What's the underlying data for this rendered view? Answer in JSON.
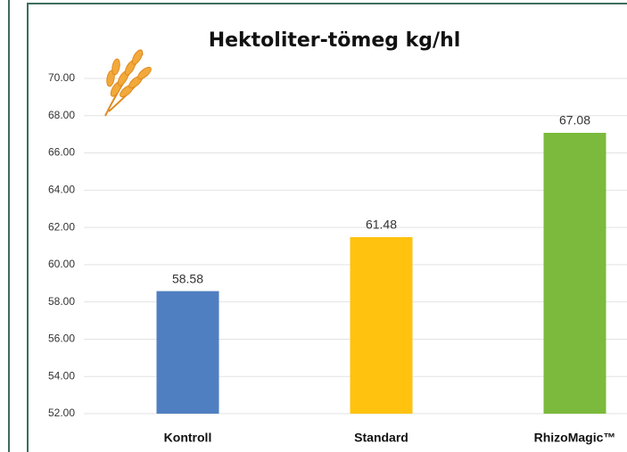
{
  "chart_data": {
    "type": "bar",
    "title": "Hektoliter-tömeg kg/hl",
    "categories": [
      "Kontroll",
      "Standard",
      "RhizoMagic™"
    ],
    "values": [
      58.58,
      61.48,
      67.08
    ],
    "colors": [
      "#4f7fc1",
      "#ffc20e",
      "#7bba3c"
    ],
    "ylim": [
      52,
      70
    ],
    "yticks": [
      {
        "value": 52,
        "label": "52.00"
      },
      {
        "value": 54,
        "label": "54.00"
      },
      {
        "value": 56,
        "label": "56.00"
      },
      {
        "value": 58,
        "label": "58.00"
      },
      {
        "value": 60,
        "label": "60.00"
      },
      {
        "value": 62,
        "label": "62.00"
      },
      {
        "value": 64,
        "label": "64.00"
      },
      {
        "value": 66,
        "label": "66.00"
      },
      {
        "value": 68,
        "label": "68.00"
      },
      {
        "value": 70,
        "label": "70.00"
      }
    ],
    "grid": true
  }
}
